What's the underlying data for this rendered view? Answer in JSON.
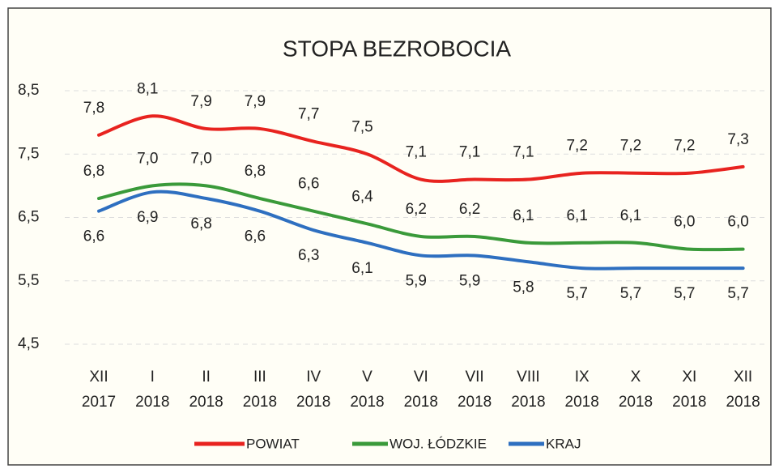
{
  "chart_data": {
    "type": "line",
    "title": "STOPA BEZROBOCIA",
    "categories": [
      [
        "XII",
        "2017"
      ],
      [
        "I",
        "2018"
      ],
      [
        "II",
        "2018"
      ],
      [
        "III",
        "2018"
      ],
      [
        "IV",
        "2018"
      ],
      [
        "V",
        "2018"
      ],
      [
        "VI",
        "2018"
      ],
      [
        "VII",
        "2018"
      ],
      [
        "VIII",
        "2018"
      ],
      [
        "IX",
        "2018"
      ],
      [
        "X",
        "2018"
      ],
      [
        "XI",
        "2018"
      ],
      [
        "XII",
        "2018"
      ]
    ],
    "series": [
      {
        "name": "POWIAT",
        "color": "#e8231f",
        "label_position": "above",
        "values": [
          7.8,
          8.1,
          7.9,
          7.9,
          7.7,
          7.5,
          7.1,
          7.1,
          7.1,
          7.2,
          7.2,
          7.2,
          7.3
        ],
        "value_labels": [
          "7,8",
          "8,1",
          "7,9",
          "7,9",
          "7,7",
          "7,5",
          "7,1",
          "7,1",
          "7,1",
          "7,2",
          "7,2",
          "7,2",
          "7,3"
        ]
      },
      {
        "name": "WOJ. ŁÓDZKIE",
        "color": "#3a9a3a",
        "label_position": "above",
        "values": [
          6.8,
          7.0,
          7.0,
          6.8,
          6.6,
          6.4,
          6.2,
          6.2,
          6.1,
          6.1,
          6.1,
          6.0,
          6.0
        ],
        "value_labels": [
          "6,8",
          "7,0",
          "7,0",
          "6,8",
          "6,6",
          "6,4",
          "6,2",
          "6,2",
          "6,1",
          "6,1",
          "6,1",
          "6,0",
          "6,0"
        ]
      },
      {
        "name": "KRAJ",
        "color": "#2e6fc0",
        "label_position": "below",
        "values": [
          6.6,
          6.9,
          6.8,
          6.6,
          6.3,
          6.1,
          5.9,
          5.9,
          5.8,
          5.7,
          5.7,
          5.7,
          5.7
        ],
        "value_labels": [
          "6,6",
          "6,9",
          "6,8",
          "6,6",
          "6,3",
          "6,1",
          "5,9",
          "5,9",
          "5,8",
          "5,7",
          "5,7",
          "5,7",
          "5,7"
        ]
      }
    ],
    "ylim": [
      4.5,
      8.5
    ],
    "yticks": [
      {
        "value": 4.5,
        "label": "4,5"
      },
      {
        "value": 5.5,
        "label": "5,5"
      },
      {
        "value": 6.5,
        "label": "6,5"
      },
      {
        "value": 7.5,
        "label": "7,5"
      },
      {
        "value": 8.5,
        "label": "8,5"
      }
    ],
    "grid": true,
    "legend": "bottom"
  }
}
